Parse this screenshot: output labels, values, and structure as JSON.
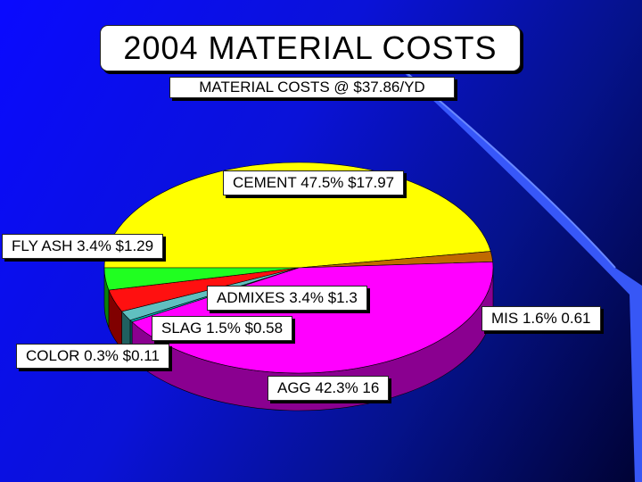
{
  "slide": {
    "title": "2004 MATERIAL COSTS",
    "subtitle": "MATERIAL COSTS @ $37.86/YD"
  },
  "chart_data": {
    "type": "pie",
    "title": "2004 MATERIAL COSTS",
    "subtitle": "MATERIAL COSTS @ $37.86/YD",
    "slices": [
      {
        "name": "CEMENT",
        "percent": 47.5,
        "value": 17.97,
        "label": "CEMENT 47.5% $17.97",
        "color": "#ffff00",
        "side": "#8a8a00"
      },
      {
        "name": "MIS",
        "percent": 1.6,
        "value": 0.61,
        "label": "MIS 1.6% 0.61",
        "color": "#c06a00",
        "side": "#4a2200"
      },
      {
        "name": "AGG",
        "percent": 42.3,
        "value": 16,
        "label": "AGG 42.3% 16",
        "color": "#ff00ff",
        "side": "#8a0090"
      },
      {
        "name": "COLOR",
        "percent": 0.3,
        "value": 0.11,
        "label": "COLOR 0.3% $0.11",
        "color": "#00b0b0",
        "side": "#006060"
      },
      {
        "name": "SLAG",
        "percent": 1.5,
        "value": 0.58,
        "label": "SLAG 1.5% $0.58",
        "color": "#60c0c0",
        "side": "#206060"
      },
      {
        "name": "ADMIXES",
        "percent": 3.4,
        "value": 1.3,
        "label": "ADMIXES 3.4% $1.3",
        "color": "#ff1010",
        "side": "#800000"
      },
      {
        "name": "FLY ASH",
        "percent": 3.4,
        "value": 1.29,
        "label": "FLY ASH 3.4% $1.29",
        "color": "#20ff20",
        "side": "#0a800a"
      }
    ]
  }
}
